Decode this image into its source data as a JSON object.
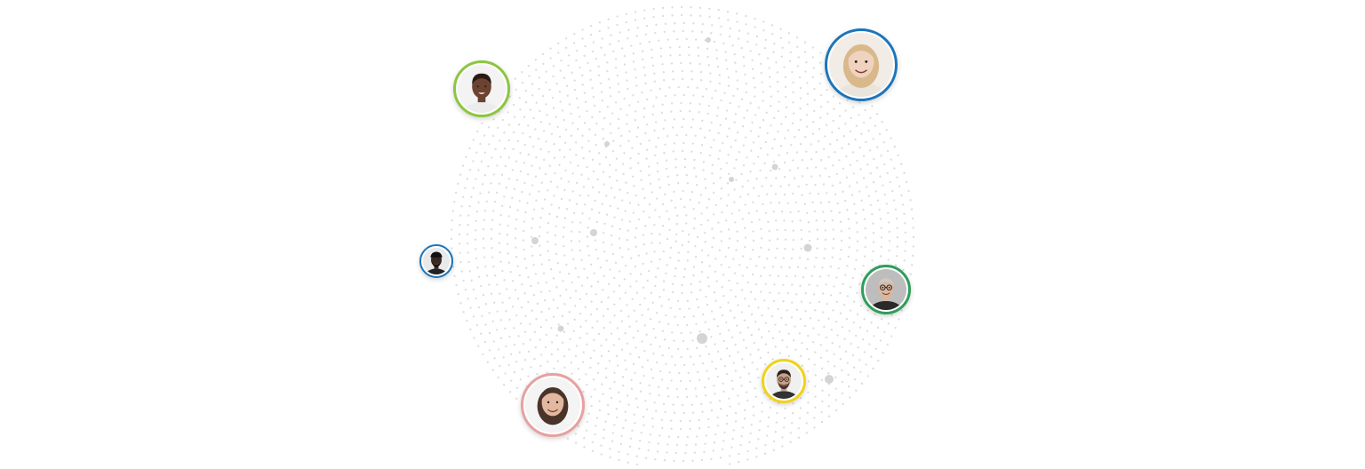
{
  "scene": {
    "background_color": "#ffffff",
    "dot_color": "#dcdcdc",
    "highlight_dot_color": "#d4d4d4",
    "icon": "radial-dot-field"
  },
  "avatars": [
    {
      "id": "av-1",
      "ring_color": "#8cc63f",
      "icon": "person-smiling-man-avatar",
      "skin": "#6b4330",
      "hair": "#2a1a12",
      "shirt": "#ececec",
      "bg": "#f3f3f3"
    },
    {
      "id": "av-2",
      "ring_color": "#1b75bc",
      "icon": "person-blonde-woman-avatar",
      "skin": "#efd3c0",
      "hair": "#d9b98a",
      "shirt": "#e9e4dc",
      "bg": "#f1ece6"
    },
    {
      "id": "av-3",
      "ring_color": "#1b75bc",
      "icon": "person-man-cap-avatar",
      "skin": "#3b2a22",
      "hair": "#111111",
      "shirt": "#222222",
      "bg": "#e9e9e9"
    },
    {
      "id": "av-4",
      "ring_color": "#2e9e5b",
      "icon": "person-older-man-glasses-avatar",
      "skin": "#d9b7a0",
      "hair": "#c9c9c9",
      "shirt": "#2a2a2a",
      "bg": "#bdbdbd"
    },
    {
      "id": "av-5",
      "ring_color": "#f2d21b",
      "icon": "person-man-glasses-avatar",
      "skin": "#c9a08a",
      "hair": "#2a211c",
      "shirt": "#333333",
      "bg": "#f0f0f0"
    },
    {
      "id": "av-6",
      "ring_color": "#e8a0a0",
      "icon": "person-woman-smiling-avatar",
      "skin": "#e2b9a0",
      "hair": "#4a3328",
      "shirt": "#f2f2f2",
      "bg": "#f4f4f4"
    }
  ]
}
